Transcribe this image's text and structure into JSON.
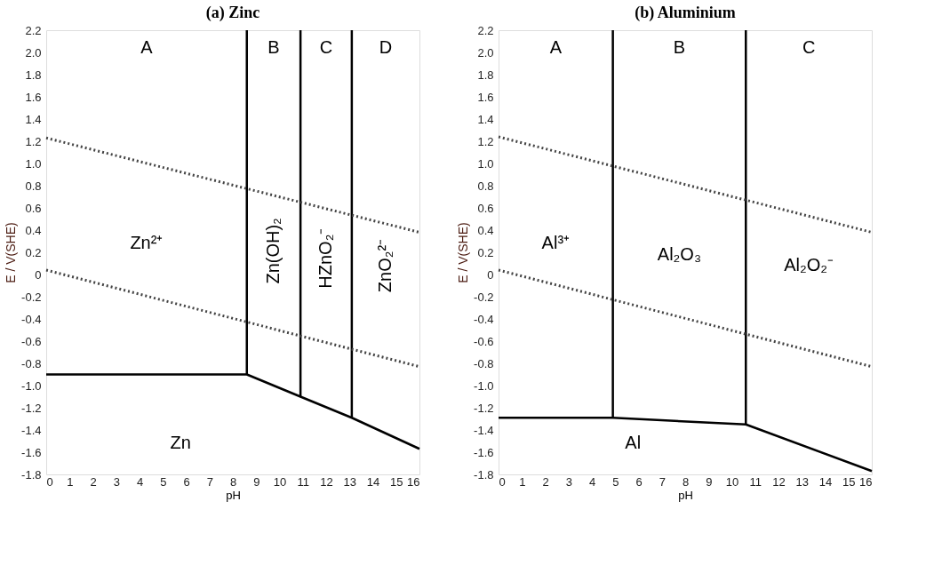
{
  "chart_data": [
    {
      "type": "line",
      "title": "(a) Zinc",
      "xlabel": "pH",
      "ylabel": "E / V(SHE)",
      "xlim": [
        0,
        16
      ],
      "ylim": [
        -1.8,
        2.2
      ],
      "xticks": [
        0,
        1,
        2,
        3,
        4,
        5,
        6,
        7,
        8,
        9,
        10,
        11,
        12,
        13,
        14,
        15,
        16
      ],
      "yticks": [
        -1.8,
        -1.6,
        -1.4,
        -1.2,
        {
          "value": -1,
          "label": "-1.0"
        },
        -0.8,
        -0.6,
        -0.4,
        -0.2,
        0,
        0.2,
        0.4,
        0.6,
        0.8,
        {
          "value": 1,
          "label": "1.0"
        },
        1.2,
        1.4,
        1.6,
        1.8,
        {
          "value": 2,
          "label": "2.0"
        },
        2.2
      ],
      "series": [
        {
          "color": "#000000",
          "line_style": "solid",
          "x": [
            0,
            8.6,
            10.9,
            13.1,
            16
          ],
          "values": [
            -0.9,
            -0.9,
            -1.1,
            -1.29,
            -1.57
          ]
        },
        {
          "color": "#000000",
          "line_style": "solid",
          "x": [
            8.6,
            8.6,
            null,
            10.9,
            10.9,
            null,
            13.1,
            13.1
          ],
          "values": [
            -0.9,
            2.2,
            null,
            -1.1,
            2.2,
            null,
            -1.29,
            2.2
          ]
        },
        {
          "color": "#444444",
          "line_style": "dotted",
          "x": [
            0,
            16
          ],
          "values": [
            1.23,
            0.38
          ]
        },
        {
          "color": "#444444",
          "line_style": "dotted",
          "x": [
            0,
            16
          ],
          "values": [
            0.04,
            -0.83
          ]
        }
      ],
      "annotations": [
        "A",
        "B",
        "C",
        "D",
        "Zn²⁺",
        "Zn(OH)₂",
        "HZnO₂⁻",
        "ZnO₂²⁻",
        "Zn"
      ]
    },
    {
      "type": "line",
      "title": "(b) Aluminium",
      "xlabel": "pH",
      "ylabel": "E / V(SHE)",
      "xlim": [
        0,
        16
      ],
      "ylim": [
        -1.8,
        2.2
      ],
      "xticks": [
        0,
        1,
        2,
        3,
        4,
        5,
        6,
        7,
        8,
        9,
        10,
        11,
        12,
        13,
        14,
        15,
        16
      ],
      "yticks": [
        -1.8,
        -1.6,
        -1.4,
        -1.2,
        {
          "value": -1,
          "label": "-1.0"
        },
        -0.8,
        -0.6,
        -0.4,
        -0.2,
        0,
        0.2,
        0.4,
        0.6,
        0.8,
        {
          "value": 1,
          "label": "1.0"
        },
        1.2,
        1.4,
        1.6,
        1.8,
        {
          "value": 2,
          "label": "2.0"
        },
        2.2
      ],
      "series": [
        {
          "color": "#000000",
          "line_style": "solid",
          "x": [
            0,
            4.9,
            10.6,
            16
          ],
          "values": [
            -1.29,
            -1.29,
            -1.35,
            -1.77
          ]
        },
        {
          "color": "#000000",
          "line_style": "solid",
          "x": [
            4.9,
            4.9,
            null,
            10.6,
            10.6
          ],
          "values": [
            -1.29,
            2.2,
            null,
            -1.35,
            2.2
          ]
        },
        {
          "color": "#444444",
          "line_style": "dotted",
          "x": [
            0,
            16
          ],
          "values": [
            1.24,
            0.38
          ]
        },
        {
          "color": "#444444",
          "line_style": "dotted",
          "x": [
            0,
            16
          ],
          "values": [
            0.04,
            -0.83
          ]
        }
      ],
      "annotations": [
        "A",
        "B",
        "C",
        "Al³⁺",
        "Al₂O₃",
        "Al₂O₂⁻",
        "Al"
      ]
    }
  ]
}
